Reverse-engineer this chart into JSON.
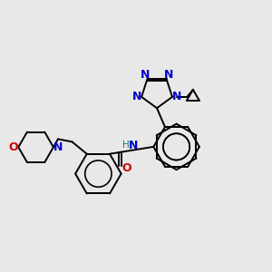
{
  "background_color": "#e8e8e8",
  "bond_color": "#000000",
  "n_color": "#0000cc",
  "o_color": "#cc0000",
  "h_color": "#008080",
  "figsize": [
    3.0,
    3.0
  ],
  "dpi": 100,
  "xlim": [
    0,
    10
  ],
  "ylim": [
    0,
    10
  ]
}
